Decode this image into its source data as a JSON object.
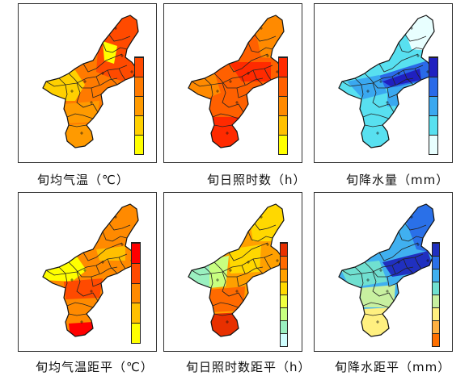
{
  "panels": [
    {
      "id": "p1",
      "caption": "旬均气温（℃）",
      "palette": "temp"
    },
    {
      "id": "p2",
      "caption": "旬日照时数（h）",
      "palette": "sun"
    },
    {
      "id": "p3",
      "caption": "旬降水量（mm）",
      "palette": "rain"
    },
    {
      "id": "p4",
      "caption": "旬均气温距平（℃）",
      "palette": "tempAnom"
    },
    {
      "id": "p5",
      "caption": "旬日照时数距平（h）",
      "palette": "sunAnom"
    },
    {
      "id": "p6",
      "caption": "旬降水距平（mm）",
      "palette": "rainAnom"
    }
  ],
  "colors": {
    "temp": [
      "#ff4a00",
      "#ff7a00",
      "#ff9a00",
      "#ffd000",
      "#ffff00"
    ],
    "sun": [
      "#ff2a00",
      "#ff6000",
      "#ff8a00",
      "#ffc000",
      "#ffff00"
    ],
    "rain": [
      "#2020c0",
      "#2a6ae8",
      "#3aa8f0",
      "#58e0f0",
      "#e8ffff"
    ],
    "tempAnom": [
      "#ff0000",
      "#ff4a00",
      "#ff8a00",
      "#ffc000",
      "#ffff00"
    ],
    "sunAnom": [
      "#e83000",
      "#ff6a00",
      "#ffa000",
      "#ffd800",
      "#f0ff40",
      "#c8ff80",
      "#9af0c0",
      "#d0ffff"
    ],
    "rainAnom": [
      "#2030c0",
      "#2a70e8",
      "#40b0f0",
      "#70e0d0",
      "#c8f0a0",
      "#fff080",
      "#ffb040",
      "#ff7000"
    ]
  }
}
